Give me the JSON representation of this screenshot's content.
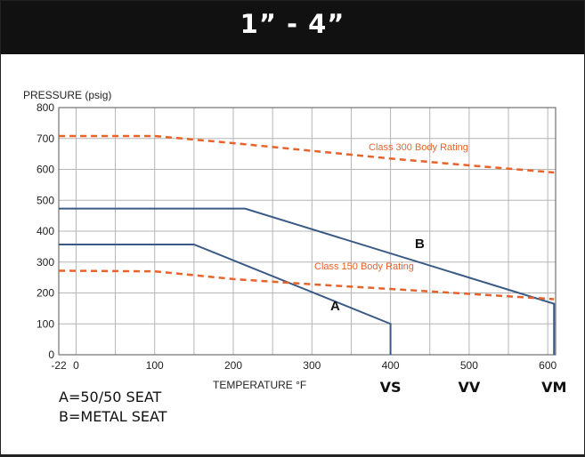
{
  "header": {
    "title": "1” - 4”"
  },
  "legend_notes": [
    "A=50/50 SEAT",
    "B=METAL SEAT"
  ],
  "colors": {
    "seat_lines": "#3a5a85",
    "body_rating": "#e8632a",
    "grid": "#b5b5b5",
    "header_bg": "#111111"
  },
  "chart_data": {
    "type": "line",
    "ylabel": "PRESSURE (psig)",
    "xlabel": "TEMPERATURE °F",
    "xlim": [
      -22,
      610
    ],
    "ylim": [
      0,
      800
    ],
    "grid": true,
    "x_ticks": [
      "-22",
      "0",
      "100",
      "200",
      "300",
      "400",
      "500",
      "600"
    ],
    "y_ticks": [
      "0",
      "100",
      "200",
      "300",
      "400",
      "500",
      "600",
      "700",
      "800"
    ],
    "series": [
      {
        "name": "A",
        "style": "solid",
        "color": "#3a5a85",
        "points": [
          [
            -22,
            357
          ],
          [
            150,
            357
          ],
          [
            400,
            100
          ],
          [
            400,
            0
          ]
        ]
      },
      {
        "name": "B",
        "style": "solid",
        "color": "#3a5a85",
        "points": [
          [
            -22,
            473
          ],
          [
            215,
            473
          ],
          [
            608,
            165
          ],
          [
            608,
            0
          ]
        ]
      },
      {
        "name": "Class 300 Body Rating",
        "style": "dashed",
        "color": "#e8632a",
        "points": [
          [
            -22,
            708
          ],
          [
            100,
            708
          ],
          [
            200,
            685
          ],
          [
            300,
            660
          ],
          [
            400,
            635
          ],
          [
            500,
            613
          ],
          [
            608,
            590
          ]
        ]
      },
      {
        "name": "Class 150 Body Rating",
        "style": "dashed",
        "color": "#e8632a",
        "points": [
          [
            -22,
            272
          ],
          [
            100,
            270
          ],
          [
            200,
            245
          ],
          [
            300,
            228
          ],
          [
            400,
            213
          ],
          [
            500,
            197
          ],
          [
            608,
            180
          ]
        ]
      }
    ],
    "markers": [
      {
        "label": "VS",
        "x": 400,
        "y": 0
      },
      {
        "label": "VV",
        "x": 500,
        "y": 0
      },
      {
        "label": "VM",
        "x": 608,
        "y": 0
      }
    ]
  }
}
